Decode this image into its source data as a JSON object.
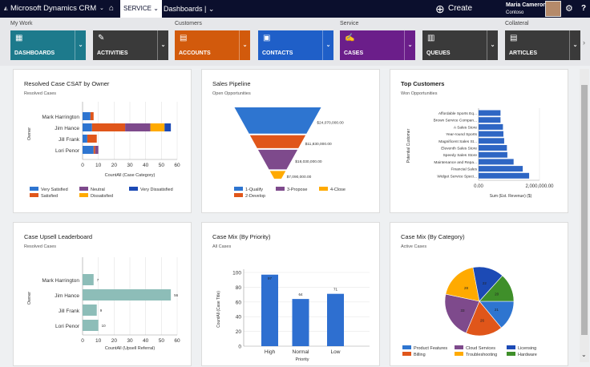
{
  "nav": {
    "app": "Microsoft Dynamics CRM",
    "area": "SERVICE",
    "page": "Dashboards",
    "create": "Create",
    "user_name": "Maria Cameron",
    "user_org": "Contoso"
  },
  "groups": [
    "My Work",
    "Customers",
    "Service",
    "Collateral"
  ],
  "tiles": [
    {
      "label": "DASHBOARDS",
      "color": "#1d7a8c"
    },
    {
      "label": "ACTIVITIES",
      "color": "#3a3a3a"
    },
    {
      "label": "ACCOUNTS",
      "color": "#d25a0c"
    },
    {
      "label": "CONTACTS",
      "color": "#1f5fc8"
    },
    {
      "label": "CASES",
      "color": "#6b1e8a"
    },
    {
      "label": "QUEUES",
      "color": "#3a3a3a"
    },
    {
      "label": "ARTICLES",
      "color": "#3a3a3a"
    }
  ],
  "chart_data": [
    {
      "type": "bar",
      "orientation": "horizontal",
      "stacked": true,
      "title": "Resolved Case CSAT by Owner",
      "subtitle": "Resolved Cases",
      "xlabel": "CountAll (Case Category)",
      "ylabel": "Owner",
      "xlim": [
        0,
        60
      ],
      "xticks": [
        "0",
        "10",
        "20",
        "30",
        "40",
        "50",
        "60"
      ],
      "categories": [
        "Mark Harrington",
        "Jim Hance",
        "Jill Frank",
        "Lori Penor"
      ],
      "series": [
        {
          "name": "Very Satisfied",
          "color": "#2e75d0",
          "values": [
            5,
            6,
            3,
            7
          ]
        },
        {
          "name": "Satisfied",
          "color": "#e0561a",
          "values": [
            2,
            21,
            6,
            1
          ]
        },
        {
          "name": "Neutral",
          "color": "#7e4a8c",
          "values": [
            0,
            16,
            0,
            2
          ]
        },
        {
          "name": "Dissatisfied",
          "color": "#ffaa00",
          "values": [
            0,
            9,
            0,
            0
          ]
        },
        {
          "name": "Very Dissatisfied",
          "color": "#1c4ab5",
          "values": [
            0,
            4,
            0,
            0
          ]
        }
      ]
    },
    {
      "type": "funnel",
      "title": "Sales Pipeline",
      "subtitle": "Open Opportunities",
      "categories": [
        "1-Qualify",
        "2-Develop",
        "3-Propose",
        "4-Close"
      ],
      "values": [
        24070000,
        11830000,
        18030000,
        7090000
      ],
      "labels": [
        "$24,070,000.00",
        "$11,830,000.00",
        "$18,030,000.00",
        "$7,090,000.00"
      ],
      "colors": [
        "#2e75d0",
        "#e0561a",
        "#7e4a8c",
        "#ffaa00"
      ]
    },
    {
      "type": "bar",
      "orientation": "horizontal",
      "title": "Top Customers",
      "subtitle": "Won Opportunities",
      "xlabel": "Sum (Est. Revenue) ($)",
      "ylabel": "Potential Customer",
      "xlim": [
        0,
        2000000
      ],
      "xticks": [
        "0.00",
        "2,000,000.00"
      ],
      "color": "#2e66c4",
      "categories": [
        "Affordable Sports Eq...",
        "Brown Service Compan...",
        "A Sales Store",
        "Year-round Sports",
        "Magnificent Sales St...",
        "Eleventh Sales Store",
        "Speedy Sales Store",
        "Maintenance and Repa...",
        "Financial Sales",
        "Widget Service Speci..."
      ],
      "values": [
        720000,
        720000,
        800000,
        815000,
        840000,
        930000,
        945000,
        1150000,
        1450000,
        1660000
      ]
    },
    {
      "type": "bar",
      "orientation": "horizontal",
      "title": "Case Upsell Leaderboard",
      "subtitle": "Resolved Cases",
      "xlabel": "CountAll (Upsell Referral)",
      "ylabel": "Owner",
      "xlim": [
        0,
        60
      ],
      "xticks": [
        "0",
        "10",
        "20",
        "30",
        "40",
        "50",
        "60"
      ],
      "color": "#8dbdb8",
      "categories": [
        "Mark Harrington",
        "Jim Hance",
        "Jill Frank",
        "Lori Penor"
      ],
      "values": [
        7,
        56,
        9,
        10
      ]
    },
    {
      "type": "bar",
      "title": "Case Mix (By Priority)",
      "subtitle": "All Cases",
      "xlabel": "Priority",
      "ylabel": "CountAll (Case Title)",
      "ylim": [
        0,
        100
      ],
      "yticks": [
        "0",
        "20",
        "40",
        "60",
        "80",
        "100"
      ],
      "color": "#2e6fd0",
      "categories": [
        "High",
        "Normal",
        "Low"
      ],
      "values": [
        97,
        64,
        71
      ]
    },
    {
      "type": "pie",
      "title": "Case Mix (By Category)",
      "subtitle": "Active Cases",
      "categories": [
        "Product Features",
        "Billing",
        "Cloud Services",
        "Troubleshooting",
        "Licensing",
        "Hardware"
      ],
      "values": [
        21,
        26,
        33,
        28,
        22,
        20
      ],
      "colors": [
        "#2e75d0",
        "#e0561a",
        "#7e4a8c",
        "#ffaa00",
        "#1c4ab5",
        "#3f8f2a"
      ],
      "legend_order": [
        0,
        2,
        4,
        1,
        3,
        5
      ]
    }
  ]
}
